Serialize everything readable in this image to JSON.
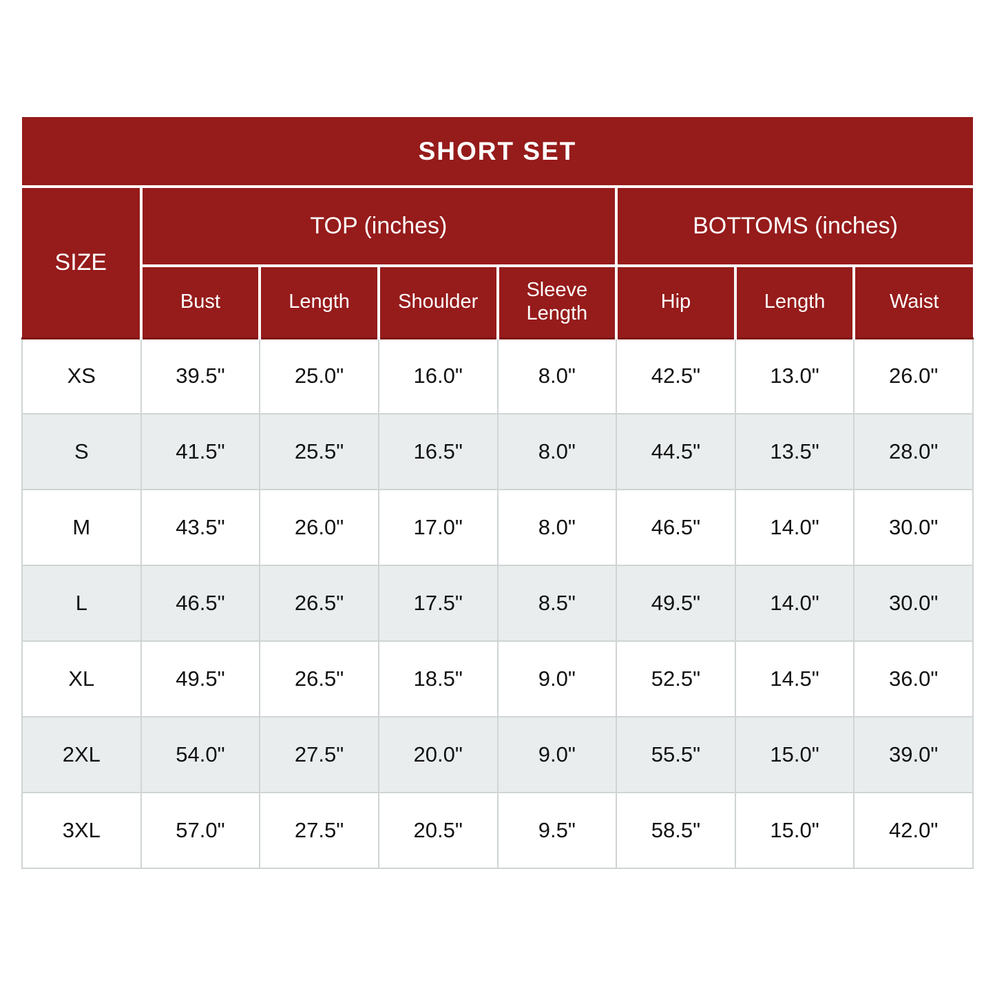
{
  "colors": {
    "header_red": "#961b1b",
    "header_separator": "#ffffff",
    "header_bottom_line": "#801414",
    "row_alt_bg": "#e9eded",
    "grid_line": "#cfd4d4",
    "header_text": "#ffffff",
    "body_text": "#121212",
    "page_bg": "#ffffff"
  },
  "chart_data": {
    "type": "table",
    "title": "SHORT SET",
    "size_column_header": "SIZE",
    "groups": [
      {
        "label": "TOP (inches)",
        "colspan": 4
      },
      {
        "label": "BOTTOMS (inches)",
        "colspan": 3
      }
    ],
    "columns": [
      "Bust",
      "Length",
      "Shoulder",
      "Sleeve Length",
      "Hip",
      "Length",
      "Waist"
    ],
    "rows": [
      {
        "size": "XS",
        "values": [
          "39.5\"",
          "25.0\"",
          "16.0\"",
          "8.0\"",
          "42.5\"",
          "13.0\"",
          "26.0\""
        ]
      },
      {
        "size": "S",
        "values": [
          "41.5\"",
          "25.5\"",
          "16.5\"",
          "8.0\"",
          "44.5\"",
          "13.5\"",
          "28.0\""
        ]
      },
      {
        "size": "M",
        "values": [
          "43.5\"",
          "26.0\"",
          "17.0\"",
          "8.0\"",
          "46.5\"",
          "14.0\"",
          "30.0\""
        ]
      },
      {
        "size": "L",
        "values": [
          "46.5\"",
          "26.5\"",
          "17.5\"",
          "8.5\"",
          "49.5\"",
          "14.0\"",
          "30.0\""
        ]
      },
      {
        "size": "XL",
        "values": [
          "49.5\"",
          "26.5\"",
          "18.5\"",
          "9.0\"",
          "52.5\"",
          "14.5\"",
          "36.0\""
        ]
      },
      {
        "size": "2XL",
        "values": [
          "54.0\"",
          "27.5\"",
          "20.0\"",
          "9.0\"",
          "55.5\"",
          "15.0\"",
          "39.0\""
        ]
      },
      {
        "size": "3XL",
        "values": [
          "57.0\"",
          "27.5\"",
          "20.5\"",
          "9.5\"",
          "58.5\"",
          "15.0\"",
          "42.0\""
        ]
      }
    ]
  }
}
